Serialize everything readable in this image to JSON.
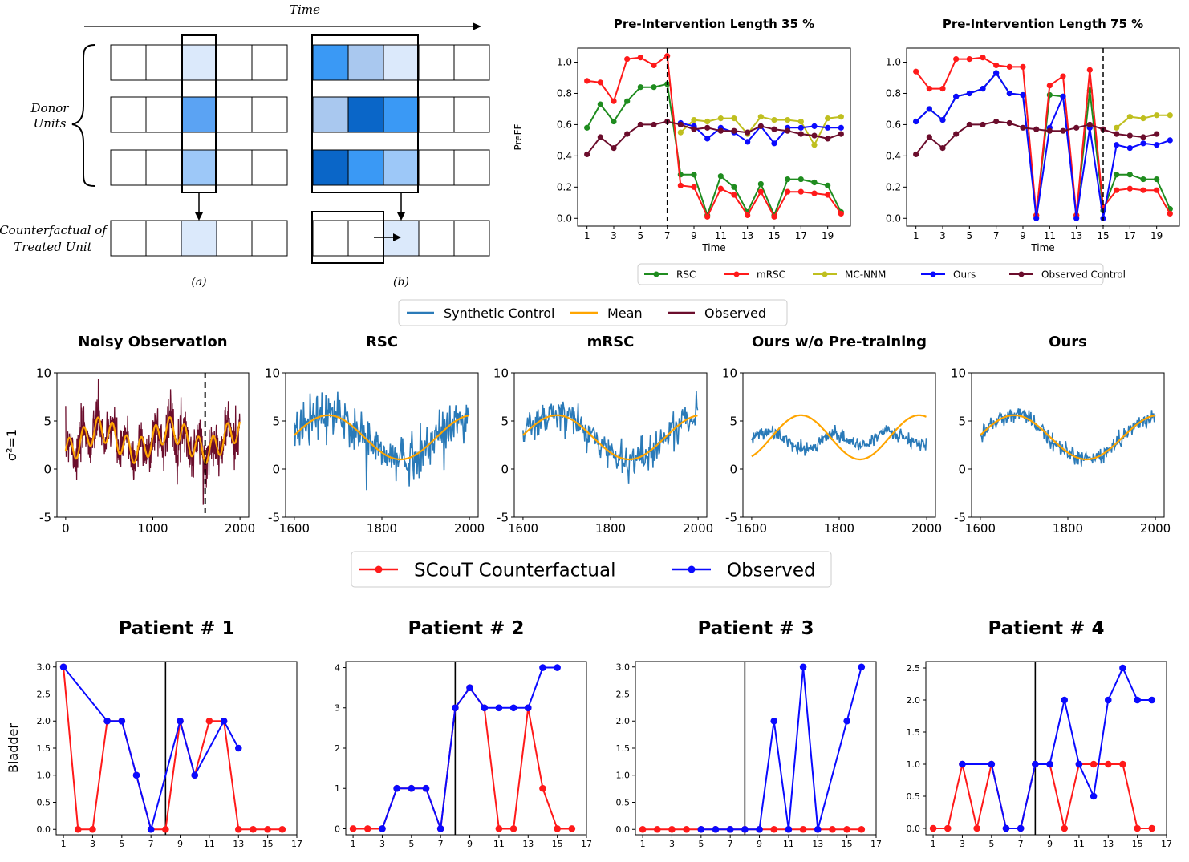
{
  "diagram": {
    "time_label": "Time",
    "donor_label_1": "Donor",
    "donor_label_2": "Units",
    "cf_label_1": "Counterfactual of",
    "cf_label_2": "Treated Unit",
    "caption_a": "(a)",
    "caption_b": "(b)",
    "colors": {
      "a_donor": [
        "#dbe9fb",
        "#5ba3f3",
        "#9dc8f8"
      ],
      "a_cf": "#dbe9fb",
      "b_donor": [
        [
          "#3a99f5",
          "#a9c8ef",
          "#dbe9fb"
        ],
        [
          "#a9c8ef",
          "#0a66c8",
          "#3a99f5"
        ],
        [
          "#0a66c8",
          "#3a99f5",
          "#9dc8f8"
        ]
      ],
      "b_cf": "#dbe9fb"
    }
  },
  "chart_data": [
    {
      "id": "preff35",
      "type": "line",
      "title": "Pre-Intervention Length 35 %",
      "xlabel": "Time",
      "ylabel": "PreFF",
      "xlim": [
        0.3,
        20.7
      ],
      "ylim": [
        -0.05,
        1.09
      ],
      "xticks": [
        1,
        3,
        5,
        7,
        9,
        11,
        13,
        15,
        17,
        19
      ],
      "yticks": [
        0.0,
        0.2,
        0.4,
        0.6,
        0.8,
        1.0
      ],
      "vline": 7,
      "series": [
        {
          "name": "RSC",
          "color": "#1f8c1f",
          "x": [
            1,
            2,
            3,
            4,
            5,
            6,
            7,
            8,
            9,
            10,
            11,
            12,
            13,
            14,
            15,
            16,
            17,
            18,
            19,
            20
          ],
          "values": [
            0.58,
            0.73,
            0.62,
            0.75,
            0.84,
            0.84,
            0.86,
            0.28,
            0.28,
            0.02,
            0.27,
            0.2,
            0.04,
            0.22,
            0.02,
            0.25,
            0.25,
            0.23,
            0.21,
            0.04
          ]
        },
        {
          "name": "mRSC",
          "color": "#ff1a1a",
          "x": [
            1,
            2,
            3,
            4,
            5,
            6,
            7,
            8,
            9,
            10,
            11,
            12,
            13,
            14,
            15,
            16,
            17,
            18,
            19,
            20
          ],
          "values": [
            0.88,
            0.87,
            0.75,
            1.02,
            1.03,
            0.98,
            1.04,
            0.21,
            0.2,
            0.01,
            0.19,
            0.15,
            0.02,
            0.17,
            0.01,
            0.17,
            0.17,
            0.16,
            0.15,
            0.03
          ]
        },
        {
          "name": "MC-NNM",
          "color": "#bfbf1f",
          "x": [
            8,
            9,
            10,
            11,
            12,
            13,
            14,
            15,
            16,
            17,
            18,
            19,
            20
          ],
          "values": [
            0.55,
            0.63,
            0.62,
            0.64,
            0.64,
            0.54,
            0.65,
            0.63,
            0.63,
            0.62,
            0.47,
            0.64,
            0.65
          ]
        },
        {
          "name": "Ours",
          "color": "#0a0aff",
          "x": [
            8,
            9,
            10,
            11,
            12,
            13,
            14,
            15,
            16,
            17,
            18,
            19,
            20
          ],
          "values": [
            0.61,
            0.59,
            0.51,
            0.58,
            0.55,
            0.49,
            0.59,
            0.48,
            0.58,
            0.58,
            0.59,
            0.58,
            0.58
          ]
        },
        {
          "name": "Observed Control",
          "color": "#6b0d2c",
          "x": [
            1,
            2,
            3,
            4,
            5,
            6,
            7,
            8,
            9,
            10,
            11,
            12,
            13,
            14,
            15,
            16,
            17,
            18,
            19,
            20
          ],
          "values": [
            0.41,
            0.52,
            0.45,
            0.54,
            0.6,
            0.6,
            0.62,
            0.6,
            0.57,
            0.58,
            0.56,
            0.56,
            0.55,
            0.59,
            0.57,
            0.56,
            0.54,
            0.53,
            0.51,
            0.54
          ]
        }
      ]
    },
    {
      "id": "preff75",
      "type": "line",
      "title": "Pre-Intervention Length 75 %",
      "xlabel": "Time",
      "ylabel": "",
      "xlim": [
        0.3,
        20.7
      ],
      "ylim": [
        -0.05,
        1.09
      ],
      "xticks": [
        1,
        3,
        5,
        7,
        9,
        11,
        13,
        15,
        17,
        19
      ],
      "yticks": [
        0.0,
        0.2,
        0.4,
        0.6,
        0.8,
        1.0
      ],
      "vline": 15,
      "series": [
        {
          "name": "RSC",
          "color": "#1f8c1f",
          "x": [
            1,
            2,
            3,
            4,
            5,
            6,
            7,
            8,
            9,
            10,
            11,
            12,
            13,
            14,
            15,
            16,
            17,
            18,
            19,
            20
          ],
          "values": [
            0.62,
            0.7,
            0.63,
            0.78,
            0.8,
            0.83,
            0.93,
            0.8,
            0.79,
            0.02,
            0.79,
            0.78,
            0.02,
            0.82,
            0.05,
            0.28,
            0.28,
            0.25,
            0.25,
            0.06
          ]
        },
        {
          "name": "mRSC",
          "color": "#ff1a1a",
          "x": [
            1,
            2,
            3,
            4,
            5,
            6,
            7,
            8,
            9,
            10,
            11,
            12,
            13,
            14,
            15,
            16,
            17,
            18,
            19,
            20
          ],
          "values": [
            0.94,
            0.83,
            0.83,
            1.02,
            1.02,
            1.03,
            0.98,
            0.97,
            0.97,
            0.02,
            0.85,
            0.91,
            0.02,
            0.95,
            0.07,
            0.18,
            0.19,
            0.18,
            0.18,
            0.03
          ]
        },
        {
          "name": "MC-NNM",
          "color": "#bfbf1f",
          "x": [
            16,
            17,
            18,
            19,
            20
          ],
          "values": [
            0.58,
            0.65,
            0.64,
            0.66,
            0.66
          ]
        },
        {
          "name": "Ours",
          "color": "#0a0aff",
          "x": [
            1,
            2,
            3,
            4,
            5,
            6,
            7,
            8,
            9,
            10,
            11,
            12,
            13,
            14,
            15,
            16,
            17,
            18,
            19,
            20
          ],
          "values": [
            0.62,
            0.7,
            0.63,
            0.78,
            0.8,
            0.83,
            0.93,
            0.8,
            0.79,
            0.0,
            0.58,
            0.78,
            0.0,
            0.58,
            0.0,
            0.47,
            0.45,
            0.48,
            0.47,
            0.5
          ]
        },
        {
          "name": "Observed Control",
          "color": "#6b0d2c",
          "x": [
            1,
            2,
            3,
            4,
            5,
            6,
            7,
            8,
            9,
            10,
            11,
            12,
            13,
            14,
            15,
            16,
            17,
            18,
            19
          ],
          "values": [
            0.41,
            0.52,
            0.45,
            0.54,
            0.6,
            0.6,
            0.62,
            0.61,
            0.58,
            0.57,
            0.56,
            0.56,
            0.58,
            0.6,
            0.57,
            0.54,
            0.53,
            0.52,
            0.54
          ]
        }
      ]
    },
    {
      "id": "noisy",
      "type": "line",
      "title": "Noisy Observation",
      "ylabel": "σ²=1",
      "xlim": [
        -100,
        2100
      ],
      "ylim": [
        -5,
        10
      ],
      "xticks": [
        0,
        1000,
        2000
      ],
      "yticks": [
        -5,
        0,
        5,
        10
      ],
      "vline": 1600,
      "mean_curve": "5 sin(2π·x/800) + 4 sin(2π·x/160)·0.5 + 3 (approx.)"
    },
    {
      "id": "rsc",
      "type": "line",
      "title": "RSC",
      "xlim": [
        1580,
        2020
      ],
      "ylim": [
        -5,
        10
      ],
      "xticks": [
        1600,
        1800,
        2000
      ],
      "yticks": [
        -5,
        0,
        5,
        10
      ]
    },
    {
      "id": "mrsc",
      "type": "line",
      "title": "mRSC",
      "xlim": [
        1580,
        2020
      ],
      "ylim": [
        -5,
        10
      ],
      "xticks": [
        1600,
        1800,
        2000
      ],
      "yticks": [
        -5,
        0,
        5,
        10
      ]
    },
    {
      "id": "ours_wo",
      "type": "line",
      "title": "Ours w/o Pre-training",
      "xlim": [
        1580,
        2020
      ],
      "ylim": [
        -5,
        10
      ],
      "xticks": [
        1600,
        1800,
        2000
      ],
      "yticks": [
        -5,
        0,
        5,
        10
      ]
    },
    {
      "id": "ours",
      "type": "line",
      "title": "Ours",
      "xlim": [
        1580,
        2020
      ],
      "ylim": [
        -5,
        10
      ],
      "xticks": [
        1600,
        1800,
        2000
      ],
      "yticks": [
        -5,
        0,
        5,
        10
      ]
    },
    {
      "id": "patient1",
      "type": "line",
      "title": "Patient # 1",
      "ylabel": "Bladder",
      "xlim": [
        0.5,
        17
      ],
      "ylim": [
        -0.1,
        3.1
      ],
      "xticks": [
        1,
        3,
        5,
        7,
        9,
        11,
        13,
        15,
        17
      ],
      "yticks": [
        0.0,
        0.5,
        1.0,
        1.5,
        2.0,
        2.5,
        3.0
      ],
      "yticklabels": [
        "0.0",
        "0.5",
        "1.0",
        "1.5",
        "2.0",
        "2.5",
        "3.0"
      ],
      "vline": 8,
      "series": [
        {
          "name": "SCouT Counterfactual",
          "color": "#ff1a1a",
          "x": [
            1,
            2,
            3,
            4,
            5,
            6,
            7,
            8,
            9,
            10,
            11,
            12,
            13,
            14,
            15,
            16
          ],
          "values": [
            3,
            0,
            0,
            2,
            2,
            1,
            0,
            0,
            2,
            1,
            2,
            2,
            0,
            0,
            0,
            0
          ]
        },
        {
          "name": "Observed",
          "color": "#0a0aff",
          "x": [
            1,
            4,
            5,
            6,
            7,
            9,
            10,
            12,
            13
          ],
          "values": [
            3,
            2,
            2,
            1,
            0,
            2,
            1,
            2,
            1.5
          ]
        }
      ]
    },
    {
      "id": "patient2",
      "type": "line",
      "title": "Patient # 2",
      "ylabel": "",
      "xlim": [
        0.5,
        17
      ],
      "ylim": [
        -0.15,
        4.15
      ],
      "xticks": [
        1,
        3,
        5,
        7,
        9,
        11,
        13,
        15,
        17
      ],
      "yticks": [
        0,
        1,
        2,
        3,
        4
      ],
      "yticklabels": [
        "0",
        "1",
        "2",
        "3",
        "4"
      ],
      "vline": 8,
      "series": [
        {
          "name": "SCouT Counterfactual",
          "color": "#ff1a1a",
          "x": [
            1,
            2,
            3,
            4,
            5,
            6,
            7,
            8,
            9,
            10,
            11,
            12,
            13,
            14,
            15,
            16
          ],
          "values": [
            0,
            0,
            0,
            1,
            1,
            1,
            0,
            3,
            3.5,
            3,
            0,
            0,
            3,
            1,
            0,
            0
          ]
        },
        {
          "name": "Observed",
          "color": "#0a0aff",
          "x": [
            3,
            4,
            5,
            6,
            7,
            8,
            9,
            10,
            11,
            12,
            13,
            14,
            15
          ],
          "values": [
            0,
            1,
            1,
            1,
            0,
            3,
            3.5,
            3,
            3,
            3,
            3,
            4,
            4
          ]
        }
      ]
    },
    {
      "id": "patient3",
      "type": "line",
      "title": "Patient # 3",
      "ylabel": "",
      "xlim": [
        0.5,
        17
      ],
      "ylim": [
        -0.1,
        3.1
      ],
      "xticks": [
        1,
        3,
        5,
        7,
        9,
        11,
        13,
        15,
        17
      ],
      "yticks": [
        0.0,
        0.5,
        1.0,
        1.5,
        2.0,
        2.5,
        3.0
      ],
      "yticklabels": [
        "0.0",
        "0.5",
        "1.0",
        "1.5",
        "2.0",
        "2.5",
        "3.0"
      ],
      "vline": 8,
      "series": [
        {
          "name": "SCouT Counterfactual",
          "color": "#ff1a1a",
          "x": [
            1,
            2,
            3,
            4,
            5,
            6,
            7,
            8,
            9,
            10,
            11,
            12,
            13,
            14,
            15,
            16
          ],
          "values": [
            0,
            0,
            0,
            0,
            0,
            0,
            0,
            0,
            0,
            0,
            0,
            0,
            0,
            0,
            0,
            0
          ]
        },
        {
          "name": "Observed",
          "color": "#0a0aff",
          "x": [
            5,
            6,
            7,
            8,
            9,
            10,
            11,
            12,
            13,
            15,
            16
          ],
          "values": [
            0,
            0,
            0,
            0,
            0,
            2,
            0,
            3,
            0,
            2,
            3
          ]
        }
      ]
    },
    {
      "id": "patient4",
      "type": "line",
      "title": "Patient # 4",
      "ylabel": "",
      "xlim": [
        0.5,
        17
      ],
      "ylim": [
        -0.1,
        2.6
      ],
      "xticks": [
        1,
        3,
        5,
        7,
        9,
        11,
        13,
        15,
        17
      ],
      "yticks": [
        0.0,
        0.5,
        1.0,
        1.5,
        2.0,
        2.5
      ],
      "yticklabels": [
        "0.0",
        "0.5",
        "1.0",
        "1.5",
        "2.0",
        "2.5"
      ],
      "vline": 8,
      "series": [
        {
          "name": "SCouT Counterfactual",
          "color": "#ff1a1a",
          "x": [
            1,
            2,
            3,
            4,
            5,
            6,
            7,
            8,
            9,
            10,
            11,
            12,
            13,
            14,
            15,
            16
          ],
          "values": [
            0,
            0,
            1,
            0,
            1,
            0,
            0,
            1,
            1,
            0,
            1,
            1,
            1,
            1,
            0,
            0
          ]
        },
        {
          "name": "Observed",
          "color": "#0a0aff",
          "x": [
            3,
            5,
            6,
            7,
            8,
            9,
            10,
            11,
            12,
            13,
            14,
            15,
            16
          ],
          "values": [
            1,
            1,
            0,
            0,
            1,
            1,
            2,
            1,
            0.5,
            2,
            2.5,
            2,
            2
          ]
        }
      ]
    }
  ],
  "legends": {
    "top": [
      {
        "label": "RSC",
        "color": "#1f8c1f"
      },
      {
        "label": "mRSC",
        "color": "#ff1a1a"
      },
      {
        "label": "MC-NNM",
        "color": "#bfbf1f"
      },
      {
        "label": "Ours",
        "color": "#0a0aff"
      },
      {
        "label": "Observed Control",
        "color": "#6b0d2c"
      }
    ],
    "middle": [
      {
        "label": "Synthetic Control",
        "color": "#2a7ab8"
      },
      {
        "label": "Mean",
        "color": "#ffa500"
      },
      {
        "label": "Observed",
        "color": "#6b0d2c"
      }
    ],
    "bottom": [
      {
        "label": "SCouT Counterfactual",
        "color": "#ff1a1a"
      },
      {
        "label": "Observed",
        "color": "#0a0aff"
      }
    ]
  }
}
